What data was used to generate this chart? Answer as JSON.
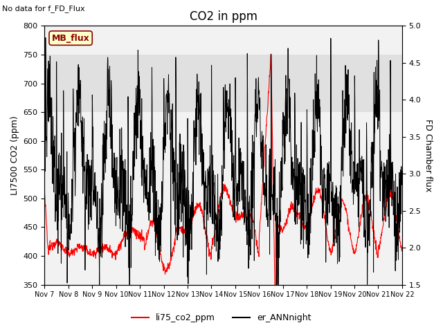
{
  "title": "CO2 in ppm",
  "no_data_text": "No data for f_FD_Flux",
  "ylabel_left": "LI7500 CO2 (ppm)",
  "ylabel_right": "FD Chamber flux",
  "ylim_left": [
    350,
    800
  ],
  "ylim_right": [
    1.5,
    5.0
  ],
  "xlim": [
    0,
    15
  ],
  "xtick_labels": [
    "Nov 7",
    "Nov 8",
    "Nov 9",
    "Nov 10",
    "Nov 11",
    "Nov 12",
    "Nov 13",
    "Nov 14",
    "Nov 15",
    "Nov 16",
    "Nov 17",
    "Nov 18",
    "Nov 19",
    "Nov 20",
    "Nov 21",
    "Nov 22"
  ],
  "yticks_left": [
    350,
    400,
    450,
    500,
    550,
    600,
    650,
    700,
    750,
    800
  ],
  "yticks_right": [
    1.5,
    2.0,
    2.5,
    3.0,
    3.5,
    4.0,
    4.5,
    5.0
  ],
  "shaded_band": [
    650,
    750
  ],
  "legend_items": [
    {
      "label": "li75_co2_ppm",
      "color": "red"
    },
    {
      "label": "er_ANNnight",
      "color": "black"
    }
  ],
  "MB_flux_label": "MB_flux",
  "title_fontsize": 12,
  "axis_fontsize": 9,
  "tick_fontsize": 8
}
